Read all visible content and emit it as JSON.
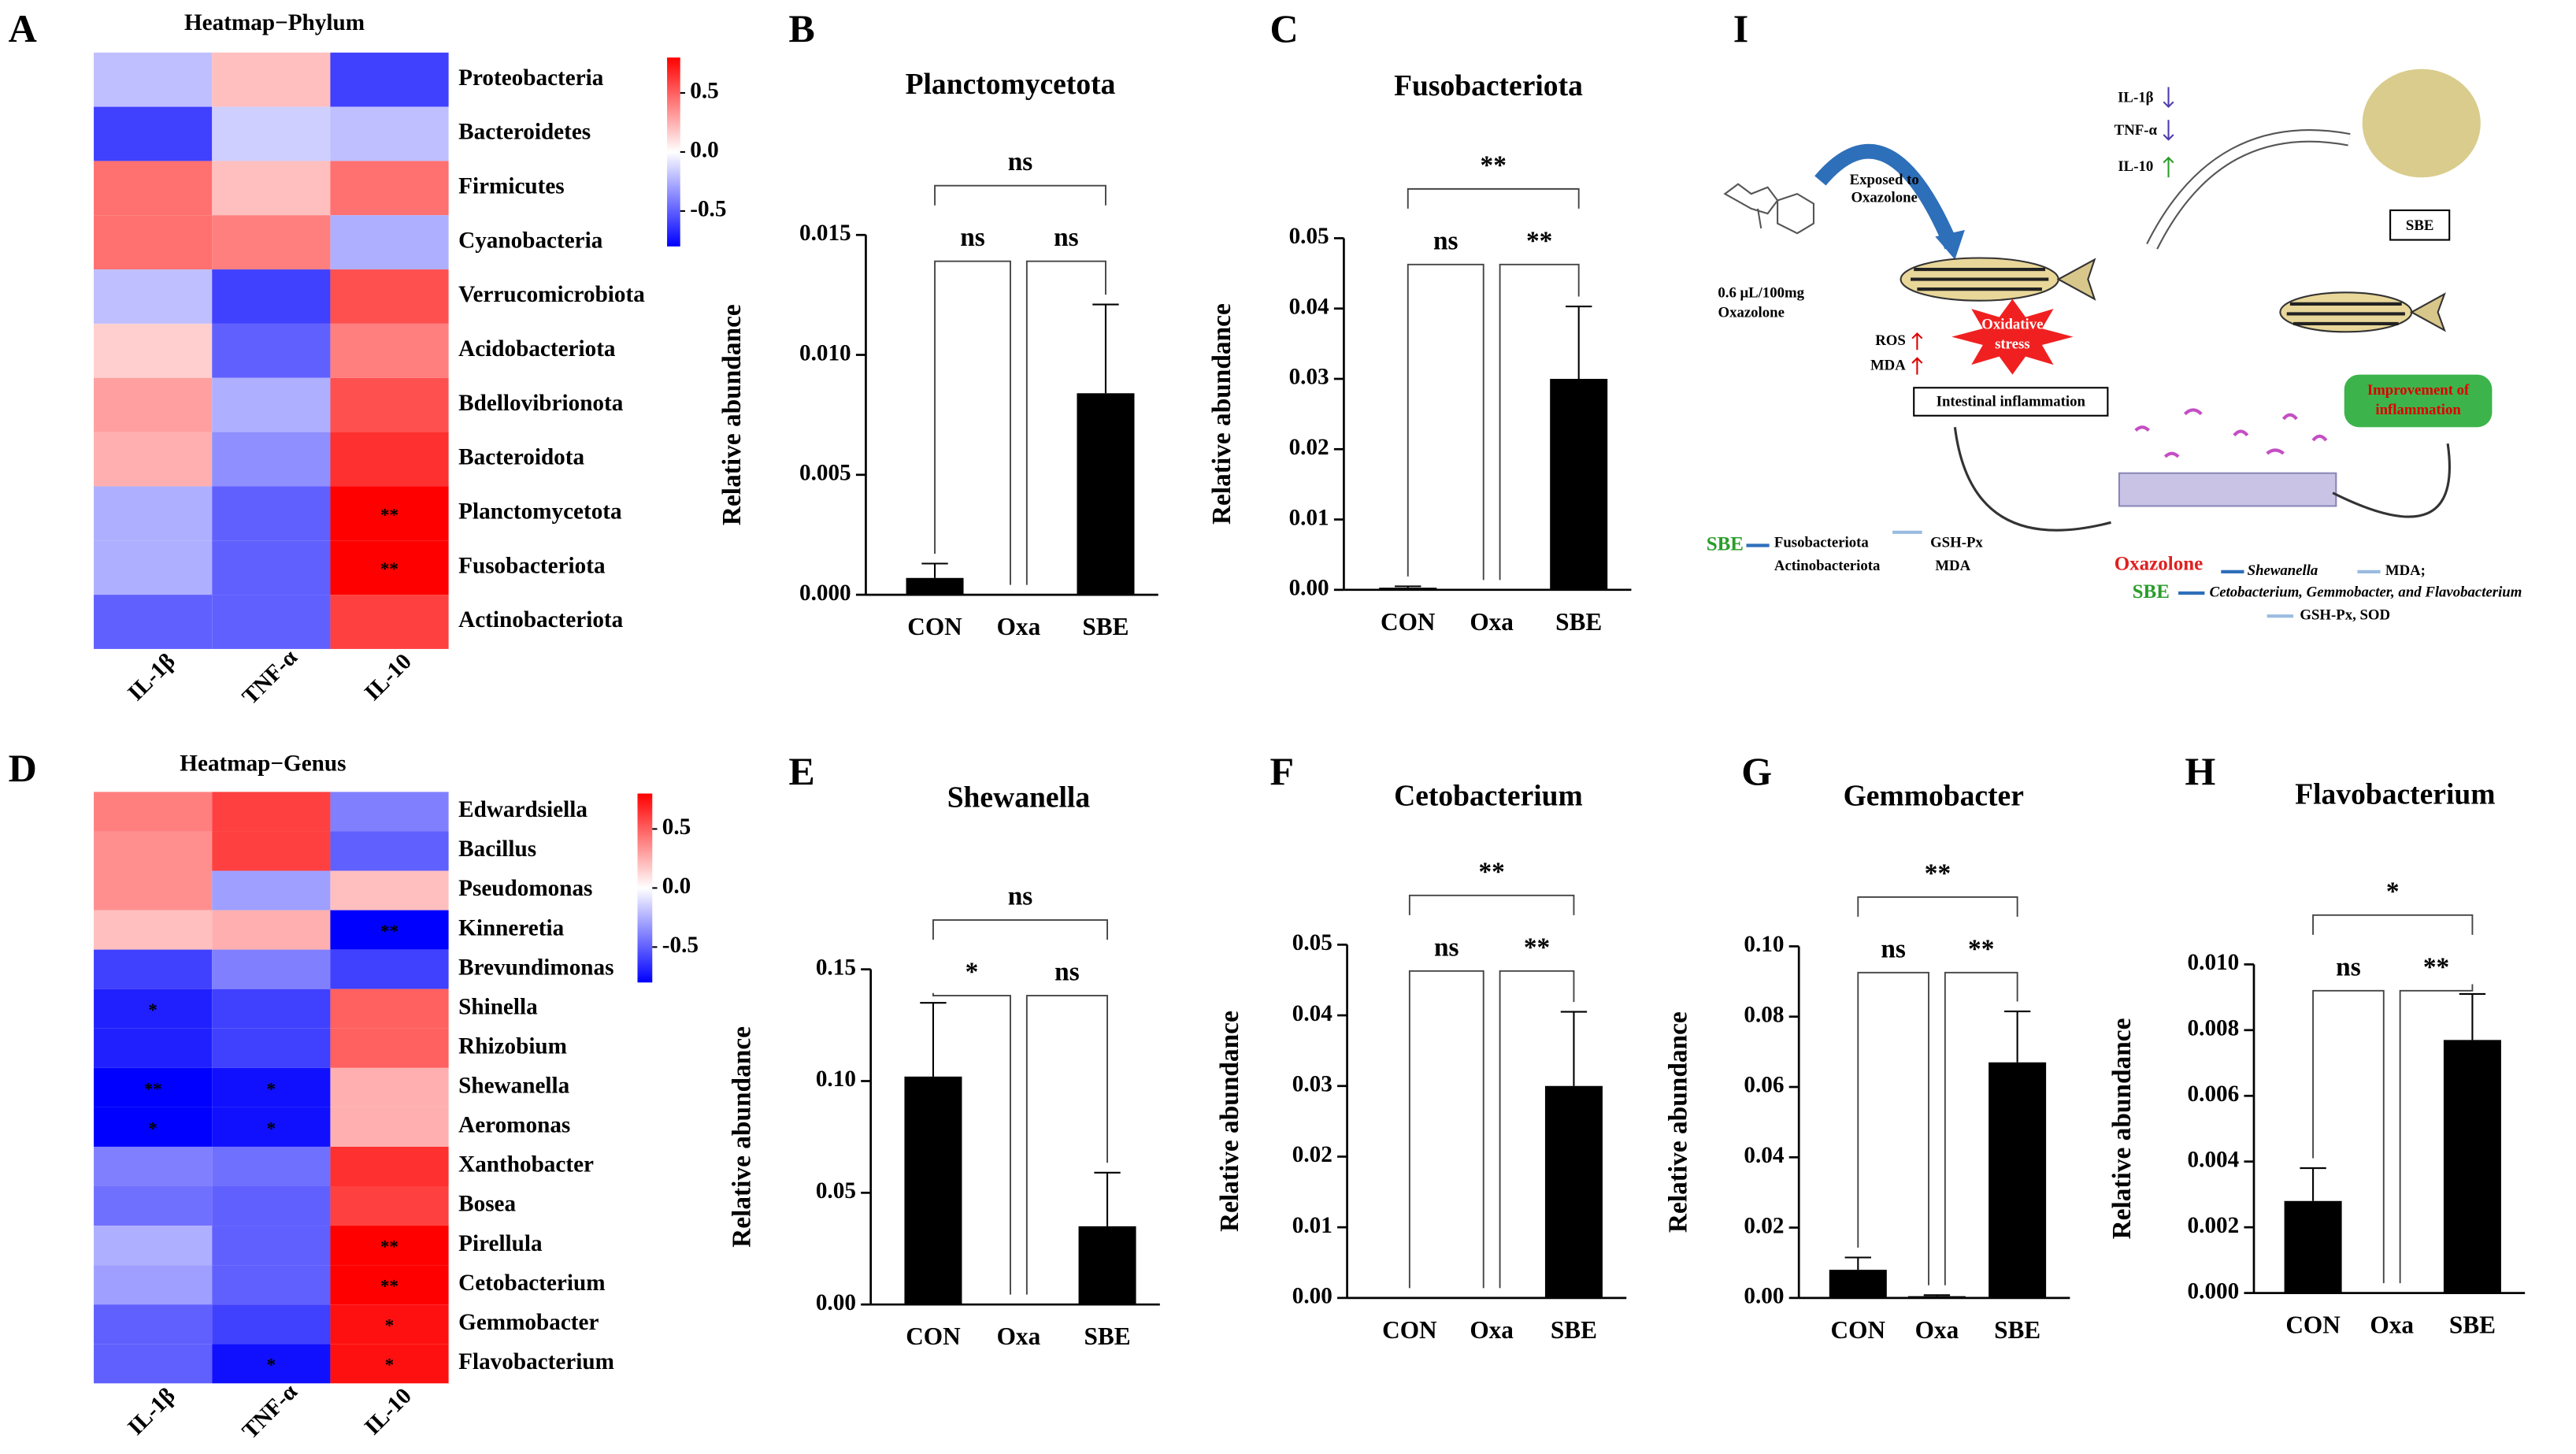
{
  "chart_data": [
    {
      "type": "heatmap",
      "panel": "A",
      "title": "Heatmap−Phylum",
      "rows": [
        "Proteobacteria",
        "Bacteroidetes",
        "Firmicutes",
        "Cyanobacteria",
        "Verrucomicrobiota",
        "Acidobacteriota",
        "Bdellovibrionota",
        "Bacteroidota",
        "Planctomycetota",
        "Fusobacteriota",
        "Actinobacteriota"
      ],
      "columns": [
        "IL-1β",
        "TNF-α",
        "IL-10"
      ],
      "values": [
        [
          -0.2,
          0.2,
          -0.6
        ],
        [
          -0.6,
          -0.15,
          -0.2
        ],
        [
          0.45,
          0.2,
          0.45
        ],
        [
          0.45,
          0.4,
          -0.25
        ],
        [
          -0.2,
          -0.6,
          0.55
        ],
        [
          0.15,
          -0.5,
          0.4
        ],
        [
          0.3,
          -0.25,
          0.55
        ],
        [
          0.25,
          -0.35,
          0.65
        ],
        [
          -0.25,
          -0.5,
          0.8
        ],
        [
          -0.25,
          -0.5,
          0.8
        ],
        [
          -0.5,
          -0.5,
          0.6
        ]
      ],
      "cell_labels": [
        [
          null,
          null,
          null
        ],
        [
          null,
          null,
          null
        ],
        [
          null,
          null,
          null
        ],
        [
          null,
          null,
          null
        ],
        [
          null,
          null,
          null
        ],
        [
          null,
          null,
          null
        ],
        [
          null,
          null,
          null
        ],
        [
          null,
          null,
          null
        ],
        [
          null,
          null,
          "**"
        ],
        [
          null,
          null,
          "**"
        ],
        [
          null,
          null,
          null
        ]
      ],
      "zlim": [
        -0.8,
        0.8
      ],
      "colorbar_ticks": [
        0.5,
        {
          "value": 0,
          "label": "0.0"
        },
        -0.5
      ],
      "colors": [
        "#0000ff",
        "#ffffff",
        "#ff0000"
      ]
    },
    {
      "type": "bar",
      "panel": "B",
      "title": "Planctomycetota",
      "y_label": "Relative abundance",
      "categories": [
        "CON",
        "Oxa",
        "SBE"
      ],
      "values": [
        0.0007,
        0,
        0.0084
      ],
      "errors": [
        0.0006,
        0,
        0.0037
      ],
      "color": "#000000",
      "ylim": [
        0,
        0.015
      ],
      "yticks": [
        {
          "value": 0,
          "label": "0.000"
        },
        0.005,
        {
          "value": 0.01,
          "label": "0.010"
        },
        0.015
      ],
      "comparisons": [
        {
          "from": "CON",
          "to": "Oxa",
          "label": "ns"
        },
        {
          "from": "Oxa",
          "to": "SBE",
          "label": "ns"
        },
        {
          "from": "CON",
          "to": "SBE",
          "label": "ns"
        }
      ]
    },
    {
      "type": "bar",
      "panel": "C",
      "title": "Fusobacteriota",
      "y_label": "Relative abundance",
      "categories": [
        "CON",
        "Oxa",
        "SBE"
      ],
      "values": [
        0.0003,
        0,
        0.03
      ],
      "errors": [
        0.0002,
        0,
        0.0103
      ],
      "color": "#000000",
      "ylim": [
        0,
        0.05
      ],
      "yticks": [
        {
          "value": 0,
          "label": "0.00"
        },
        0.01,
        0.02,
        0.03,
        0.04,
        0.05
      ],
      "comparisons": [
        {
          "from": "CON",
          "to": "Oxa",
          "label": "ns"
        },
        {
          "from": "Oxa",
          "to": "SBE",
          "label": "**"
        },
        {
          "from": "CON",
          "to": "SBE",
          "label": "**"
        }
      ]
    },
    {
      "type": "heatmap",
      "panel": "D",
      "title": "Heatmap−Genus",
      "rows": [
        "Edwardsiella",
        "Bacillus",
        "Pseudomonas",
        "Kinneretia",
        "Brevundimonas",
        "Shinella",
        "Rhizobium",
        "Shewanella",
        "Aeromonas",
        "Xanthobacter",
        "Bosea",
        "Pirellula",
        "Cetobacterium",
        "Gemmobacter",
        "Flavobacterium"
      ],
      "columns": [
        "IL-1β",
        "TNF-α",
        "IL-10"
      ],
      "values": [
        [
          0.4,
          0.6,
          -0.4
        ],
        [
          0.35,
          0.6,
          -0.5
        ],
        [
          0.35,
          -0.3,
          0.2
        ],
        [
          0.2,
          0.25,
          -0.8
        ],
        [
          -0.6,
          -0.4,
          -0.6
        ],
        [
          -0.7,
          -0.6,
          0.5
        ],
        [
          -0.7,
          -0.6,
          0.5
        ],
        [
          -0.8,
          -0.75,
          0.25
        ],
        [
          -0.8,
          -0.75,
          0.25
        ],
        [
          -0.4,
          -0.45,
          0.65
        ],
        [
          -0.45,
          -0.5,
          0.6
        ],
        [
          -0.25,
          -0.5,
          0.8
        ],
        [
          -0.3,
          -0.5,
          0.8
        ],
        [
          -0.5,
          -0.6,
          0.75
        ],
        [
          -0.5,
          -0.75,
          0.75
        ]
      ],
      "cell_labels": [
        [
          null,
          null,
          null
        ],
        [
          null,
          null,
          null
        ],
        [
          null,
          null,
          null
        ],
        [
          null,
          null,
          "**"
        ],
        [
          null,
          null,
          null
        ],
        [
          "*",
          null,
          null
        ],
        [
          null,
          null,
          null
        ],
        [
          "**",
          "*",
          null
        ],
        [
          "*",
          "*",
          null
        ],
        [
          null,
          null,
          null
        ],
        [
          null,
          null,
          null
        ],
        [
          null,
          null,
          "**"
        ],
        [
          null,
          null,
          "**"
        ],
        [
          null,
          null,
          "*"
        ],
        [
          null,
          "*",
          "*"
        ]
      ],
      "zlim": [
        -0.8,
        0.8
      ],
      "colorbar_ticks": [
        0.5,
        {
          "value": 0,
          "label": "0.0"
        },
        -0.5
      ],
      "colors": [
        "#0000ff",
        "#ffffff",
        "#ff0000"
      ]
    },
    {
      "type": "bar",
      "panel": "E",
      "title": "Shewanella",
      "y_label": "Relative abundance",
      "categories": [
        "CON",
        "Oxa",
        "SBE"
      ],
      "values": [
        0.102,
        0,
        0.035
      ],
      "errors": [
        0.033,
        0,
        0.024
      ],
      "color": "#000000",
      "ylim": [
        0,
        0.15
      ],
      "yticks": [
        {
          "value": 0,
          "label": "0.00"
        },
        0.05,
        {
          "value": 0.1,
          "label": "0.10"
        },
        0.15
      ],
      "comparisons": [
        {
          "from": "CON",
          "to": "Oxa",
          "label": "*"
        },
        {
          "from": "Oxa",
          "to": "SBE",
          "label": "ns"
        },
        {
          "from": "CON",
          "to": "SBE",
          "label": "ns"
        }
      ]
    },
    {
      "type": "bar",
      "panel": "F",
      "title": "Cetobacterium",
      "y_label": "Relative abundance",
      "categories": [
        "CON",
        "Oxa",
        "SBE"
      ],
      "values": [
        0,
        0,
        0.03
      ],
      "errors": [
        0,
        0,
        0.0105
      ],
      "color": "#000000",
      "ylim": [
        0,
        0.05
      ],
      "yticks": [
        {
          "value": 0,
          "label": "0.00"
        },
        0.01,
        0.02,
        0.03,
        0.04,
        0.05
      ],
      "comparisons": [
        {
          "from": "CON",
          "to": "Oxa",
          "label": "ns"
        },
        {
          "from": "Oxa",
          "to": "SBE",
          "label": "**"
        },
        {
          "from": "CON",
          "to": "SBE",
          "label": "**"
        }
      ]
    },
    {
      "type": "bar",
      "panel": "G",
      "title": "Gemmobacter",
      "y_label": "Relative abundance",
      "categories": [
        "CON",
        "Oxa",
        "SBE"
      ],
      "values": [
        0.008,
        0.0005,
        0.067
      ],
      "errors": [
        0.0035,
        0.0003,
        0.0145
      ],
      "color": "#000000",
      "ylim": [
        0,
        0.1
      ],
      "yticks": [
        {
          "value": 0,
          "label": "0.00"
        },
        0.02,
        0.04,
        0.06,
        0.08,
        {
          "value": 0.1,
          "label": "0.10"
        }
      ],
      "comparisons": [
        {
          "from": "CON",
          "to": "Oxa",
          "label": "ns"
        },
        {
          "from": "Oxa",
          "to": "SBE",
          "label": "**"
        },
        {
          "from": "CON",
          "to": "SBE",
          "label": "**"
        }
      ]
    },
    {
      "type": "bar",
      "panel": "H",
      "title": "Flavobacterium",
      "y_label": "Relative abundance",
      "categories": [
        "CON",
        "Oxa",
        "SBE"
      ],
      "values": [
        0.0028,
        0,
        0.0077
      ],
      "errors": [
        0.001,
        0,
        0.0014
      ],
      "color": "#000000",
      "ylim": [
        0,
        0.01
      ],
      "yticks": [
        {
          "value": 0,
          "label": "0.000"
        },
        0.002,
        0.004,
        0.006,
        0.008,
        {
          "value": 0.01,
          "label": "0.010"
        }
      ],
      "comparisons": [
        {
          "from": "CON",
          "to": "Oxa",
          "label": "ns"
        },
        {
          "from": "Oxa",
          "to": "SBE",
          "label": "**"
        },
        {
          "from": "CON",
          "to": "SBE",
          "label": "*"
        }
      ]
    }
  ],
  "diagram": {
    "label": "I",
    "exposed_1": "Exposed to",
    "exposed_2": "Oxazolone",
    "dose_1": "0.6 μL/100mg",
    "dose_2": "Oxazolone",
    "ros": "ROS",
    "mda": "MDA",
    "stress_1": "Oxidative",
    "stress_2": "stress",
    "inflammation": "Intestinal inflammation",
    "il1b": "IL-1β",
    "tnfa": "TNF-α",
    "il10": "IL-10",
    "sbe_box": "SBE",
    "improve_1": "Improvement of",
    "improve_2": "inflammation",
    "sbe_left": "SBE",
    "fuso": "Fusobacteriota",
    "actino": "Actinobacteriota",
    "gsh_left": "GSH-Px",
    "mda_left": "MDA",
    "oxa_right": "Oxazolone",
    "shewanella": "Shewanella",
    "mda_right": "MDA;",
    "sbe_right": "SBE",
    "genera": "Cetobacterium, Gemmobacter, and Flavobacterium",
    "enzymes": "GSH-Px, SOD"
  }
}
